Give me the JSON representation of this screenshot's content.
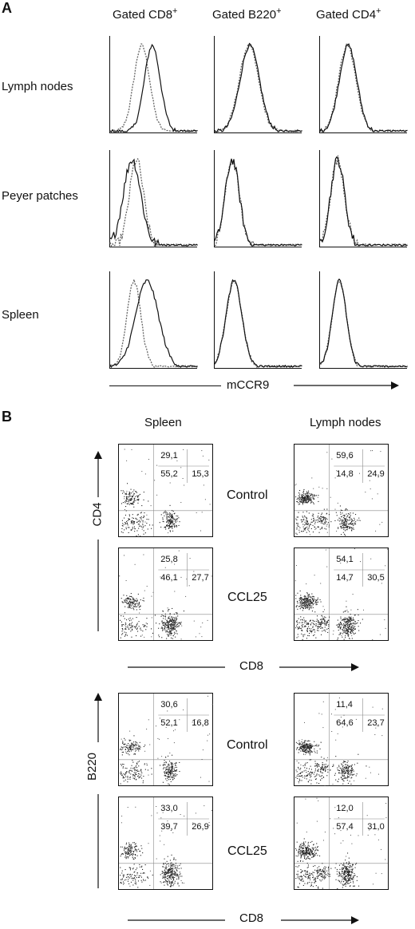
{
  "panel_a": {
    "letter": "A",
    "columns": [
      "Gated CD8",
      "Gated B220",
      "Gated CD4"
    ],
    "column_superscript": "+",
    "rows": [
      "Lymph nodes",
      "Peyer patches",
      "Spleen"
    ],
    "x_axis_label": "mCCR9"
  },
  "panel_b": {
    "letter": "B",
    "columns": [
      "Spleen",
      "Lymph nodes"
    ],
    "conditions": [
      "Control",
      "CCL25"
    ],
    "top_block": {
      "y_axis_label": "CD4",
      "x_axis_label": "CD8",
      "plots": [
        {
          "q_upper": "29,1",
          "q_left": "55,2",
          "q_right": "15,3"
        },
        {
          "q_upper": "59,6",
          "q_left": "14,8",
          "q_right": "24,9"
        },
        {
          "q_upper": "25,8",
          "q_left": "46,1",
          "q_right": "27,7"
        },
        {
          "q_upper": "54,1",
          "q_left": "14,7",
          "q_right": "30,5"
        }
      ]
    },
    "bottom_block": {
      "y_axis_label": "B220",
      "x_axis_label": "CD8",
      "plots": [
        {
          "q_upper": "30,6",
          "q_left": "52,1",
          "q_right": "16,8"
        },
        {
          "q_upper": "11,4",
          "q_left": "64,6",
          "q_right": "23,7"
        },
        {
          "q_upper": "33,0",
          "q_left": "39,7",
          "q_right": "26,9"
        },
        {
          "q_upper": "12,0",
          "q_left": "57,4",
          "q_right": "31,0"
        }
      ]
    }
  }
}
